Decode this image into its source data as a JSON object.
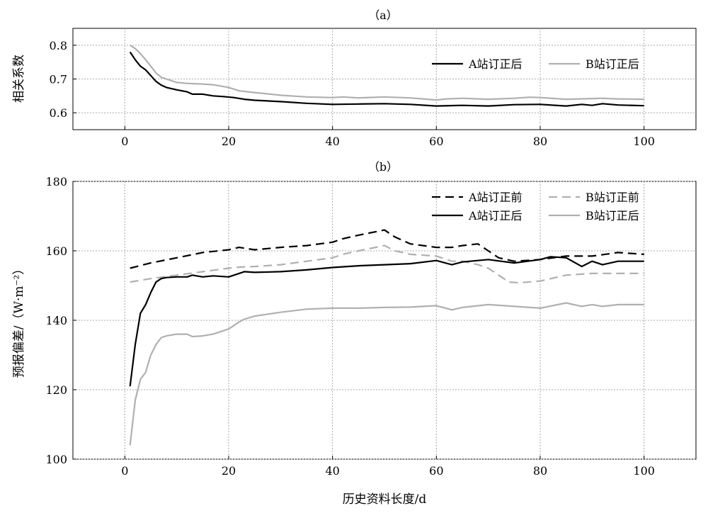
{
  "chart_data": [
    {
      "panel_label": "（a）",
      "type": "line",
      "ylabel": "相关系数",
      "xlabel": "",
      "xlim": [
        -10,
        110
      ],
      "ylim": [
        0.55,
        0.85
      ],
      "xticks": [
        0,
        20,
        40,
        60,
        80,
        100
      ],
      "yticks": [
        0.6,
        0.7,
        0.8
      ],
      "grid": true,
      "legend_position": "top-right",
      "series": [
        {
          "name": "A站订正后",
          "color": "#000000",
          "dash": "solid",
          "x": [
            1,
            2,
            3,
            4,
            5,
            6,
            7,
            8,
            10,
            12,
            13,
            15,
            17,
            19,
            21,
            23,
            25,
            30,
            35,
            40,
            45,
            50,
            55,
            60,
            65,
            70,
            75,
            80,
            85,
            88,
            90,
            92,
            95,
            100
          ],
          "y": [
            0.78,
            0.757,
            0.738,
            0.727,
            0.71,
            0.693,
            0.682,
            0.675,
            0.668,
            0.662,
            0.655,
            0.655,
            0.65,
            0.648,
            0.645,
            0.64,
            0.637,
            0.633,
            0.628,
            0.625,
            0.626,
            0.627,
            0.625,
            0.62,
            0.622,
            0.62,
            0.624,
            0.625,
            0.62,
            0.625,
            0.622,
            0.627,
            0.623,
            0.621
          ]
        },
        {
          "name": "B站订正后",
          "color": "#b0b0b0",
          "dash": "solid",
          "x": [
            1,
            2,
            3,
            4,
            5,
            6,
            7,
            8,
            10,
            12,
            15,
            17,
            20,
            22,
            25,
            30,
            35,
            40,
            42,
            45,
            50,
            55,
            60,
            62,
            65,
            70,
            75,
            78,
            80,
            85,
            90,
            92,
            95,
            100
          ],
          "y": [
            0.8,
            0.79,
            0.775,
            0.757,
            0.738,
            0.718,
            0.705,
            0.7,
            0.69,
            0.687,
            0.685,
            0.683,
            0.675,
            0.665,
            0.66,
            0.652,
            0.647,
            0.645,
            0.647,
            0.644,
            0.647,
            0.644,
            0.638,
            0.641,
            0.643,
            0.64,
            0.643,
            0.646,
            0.645,
            0.64,
            0.642,
            0.643,
            0.641,
            0.64
          ]
        }
      ]
    },
    {
      "panel_label": "（b）",
      "type": "line",
      "ylabel": "预报偏差/（W·m⁻²）",
      "xlabel": "历史资料长度/d",
      "xlim": [
        -10,
        110
      ],
      "ylim": [
        100,
        180
      ],
      "xticks": [
        0,
        20,
        40,
        60,
        80,
        100
      ],
      "yticks": [
        100,
        120,
        140,
        160,
        180
      ],
      "grid": true,
      "legend_position": "top-right",
      "series": [
        {
          "name": "A站订正前",
          "color": "#000000",
          "dash": "dashed",
          "x": [
            1,
            5,
            10,
            15,
            20,
            22,
            25,
            30,
            35,
            40,
            42,
            45,
            50,
            52,
            55,
            60,
            63,
            65,
            68,
            70,
            72,
            75,
            80,
            85,
            90,
            95,
            100
          ],
          "y": [
            155,
            156.5,
            158,
            159.5,
            160.3,
            161,
            160.3,
            161,
            161.5,
            162.5,
            163.5,
            164.5,
            166,
            164,
            162,
            161,
            161,
            161.5,
            162,
            160,
            158,
            157,
            157.5,
            158.5,
            158.5,
            159.5,
            159
          ]
        },
        {
          "name": "B站订正前",
          "color": "#b0b0b0",
          "dash": "dashed",
          "x": [
            1,
            5,
            10,
            15,
            20,
            22,
            25,
            30,
            35,
            40,
            42,
            45,
            50,
            52,
            55,
            60,
            63,
            65,
            68,
            70,
            72,
            74,
            76,
            80,
            85,
            90,
            95,
            100
          ],
          "y": [
            151,
            152,
            153,
            154,
            155,
            155.3,
            155.5,
            156,
            157,
            158,
            159,
            160,
            161.5,
            160,
            159,
            158.5,
            157,
            157,
            156,
            155,
            153,
            151,
            150.8,
            151.3,
            153,
            153.5,
            153.5,
            153.5
          ]
        },
        {
          "name": "A站订正后",
          "color": "#000000",
          "dash": "solid",
          "x": [
            1,
            2,
            3,
            4,
            5,
            6,
            7,
            8,
            10,
            12,
            13,
            15,
            17,
            19,
            20,
            22,
            23,
            25,
            30,
            35,
            40,
            45,
            50,
            55,
            60,
            63,
            65,
            70,
            75,
            80,
            82,
            85,
            88,
            90,
            92,
            95,
            100
          ],
          "y": [
            121,
            133,
            142,
            144.5,
            148,
            151,
            152,
            152.3,
            152.5,
            152.5,
            153,
            152.5,
            152.8,
            152.6,
            152.5,
            153.5,
            154,
            153.8,
            154,
            154.5,
            155.2,
            155.7,
            156,
            156.3,
            157.2,
            156,
            156.8,
            157.5,
            156.5,
            157.5,
            158.3,
            158,
            155.5,
            157,
            156,
            157,
            157
          ]
        },
        {
          "name": "B站订正后",
          "color": "#b0b0b0",
          "dash": "solid",
          "x": [
            1,
            2,
            3,
            4,
            5,
            6,
            7,
            8,
            10,
            12,
            13,
            15,
            17,
            19,
            20,
            21,
            22,
            23,
            25,
            30,
            35,
            40,
            45,
            50,
            55,
            60,
            63,
            65,
            70,
            75,
            80,
            85,
            88,
            90,
            92,
            95,
            100
          ],
          "y": [
            104,
            117,
            123,
            125,
            130,
            133,
            135,
            135.5,
            136,
            136,
            135.3,
            135.5,
            136,
            137,
            137.5,
            138.5,
            139.5,
            140.3,
            141.2,
            142.3,
            143.2,
            143.5,
            143.5,
            143.7,
            143.8,
            144.2,
            143,
            143.7,
            144.5,
            144,
            143.5,
            145,
            144,
            144.5,
            144,
            144.5,
            144.5
          ]
        }
      ]
    }
  ]
}
